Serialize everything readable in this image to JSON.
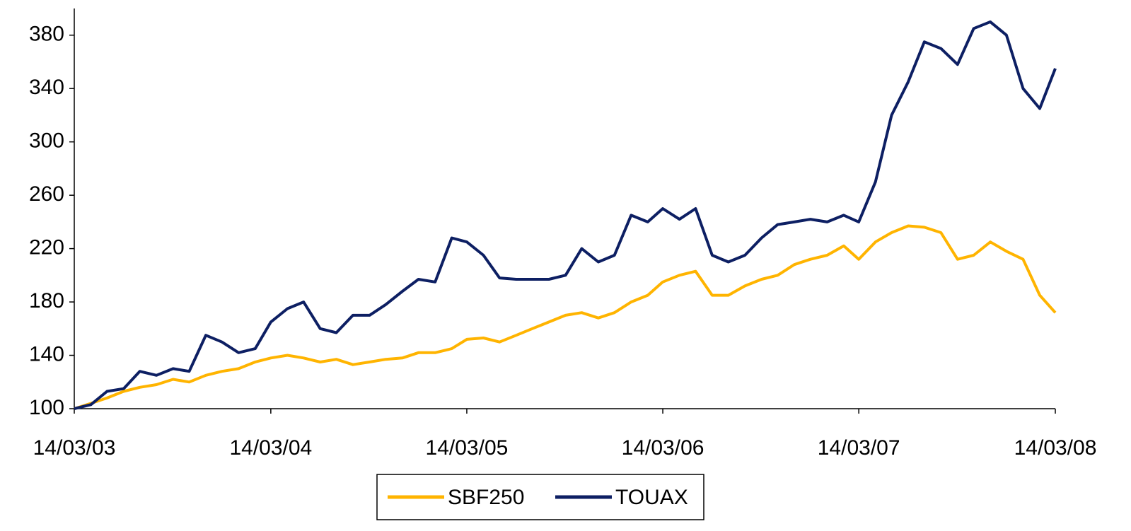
{
  "chart_data": {
    "type": "line",
    "x": [
      "14/03/03",
      "14/04/03",
      "14/05/03",
      "14/06/03",
      "14/07/03",
      "14/08/03",
      "14/09/03",
      "14/10/03",
      "14/11/03",
      "14/12/03",
      "14/01/04",
      "14/02/04",
      "14/03/04",
      "14/04/04",
      "14/05/04",
      "14/06/04",
      "14/07/04",
      "14/08/04",
      "14/09/04",
      "14/10/04",
      "14/11/04",
      "14/12/04",
      "14/01/05",
      "14/02/05",
      "14/03/05",
      "14/04/05",
      "14/05/05",
      "14/06/05",
      "14/07/05",
      "14/08/05",
      "14/09/05",
      "14/10/05",
      "14/11/05",
      "14/12/05",
      "14/01/06",
      "14/02/06",
      "14/03/06",
      "14/04/06",
      "14/05/06",
      "14/06/06",
      "14/07/06",
      "14/08/06",
      "14/09/06",
      "14/10/06",
      "14/11/06",
      "14/12/06",
      "14/01/07",
      "14/02/07",
      "14/03/07",
      "14/04/07",
      "14/05/07",
      "14/06/07",
      "14/07/07",
      "14/08/07",
      "14/09/07",
      "14/10/07",
      "14/11/07",
      "14/12/07",
      "14/01/08",
      "14/02/08",
      "14/03/08"
    ],
    "series": [
      {
        "name": "SBF250",
        "color": "#ffb400",
        "values": [
          100,
          104,
          108,
          113,
          116,
          118,
          122,
          120,
          125,
          128,
          130,
          135,
          138,
          140,
          138,
          135,
          137,
          133,
          135,
          137,
          138,
          142,
          142,
          145,
          152,
          153,
          150,
          155,
          160,
          165,
          170,
          172,
          168,
          172,
          180,
          185,
          195,
          200,
          203,
          185,
          185,
          192,
          197,
          200,
          208,
          212,
          215,
          222,
          212,
          225,
          232,
          237,
          236,
          232,
          212,
          215,
          225,
          218,
          212,
          185,
          172
        ]
      },
      {
        "name": "TOUAX",
        "color": "#0d1f63",
        "values": [
          100,
          103,
          113,
          115,
          128,
          125,
          130,
          128,
          155,
          150,
          142,
          145,
          165,
          175,
          180,
          160,
          157,
          170,
          170,
          178,
          188,
          197,
          195,
          228,
          225,
          215,
          198,
          197,
          197,
          197,
          200,
          220,
          210,
          215,
          245,
          240,
          250,
          242,
          250,
          215,
          210,
          215,
          228,
          238,
          240,
          242,
          240,
          245,
          240,
          270,
          320,
          345,
          375,
          370,
          358,
          385,
          390,
          380,
          340,
          325,
          355
        ]
      }
    ],
    "xlim": [
      "14/03/03",
      "14/03/08"
    ],
    "xticks": [
      "14/03/03",
      "14/03/04",
      "14/03/05",
      "14/03/06",
      "14/03/07",
      "14/03/08"
    ],
    "ylim": [
      100,
      400
    ],
    "yticks": [
      100,
      140,
      180,
      220,
      260,
      300,
      340,
      380
    ],
    "grid": false,
    "legend": "bottom"
  }
}
